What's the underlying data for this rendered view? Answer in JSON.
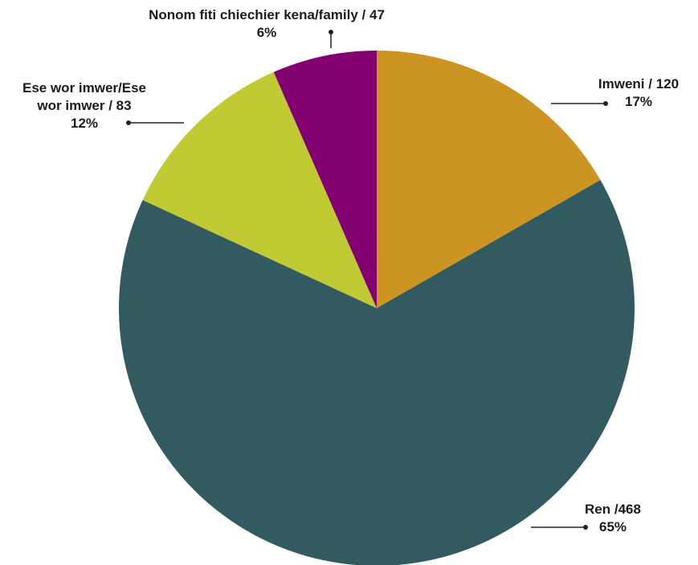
{
  "chart_data": {
    "type": "pie",
    "slices": [
      {
        "name": "Imweni",
        "value": 120,
        "percent_label": "17%",
        "label_line1": "Imweni / 120",
        "label_line2": "",
        "color": "#CC9421"
      },
      {
        "name": "Ren",
        "value": 468,
        "percent_label": "65%",
        "label_line1": "Ren /468",
        "label_line2": "",
        "color": "#315B61"
      },
      {
        "name": "Ese wor imwer/Ese wor imwer",
        "value": 83,
        "percent_label": "12%",
        "label_line1": "Ese wor imwer/Ese",
        "label_line2": "wor imwer / 83",
        "color": "#C0CB33"
      },
      {
        "name": "Nonom fiti chiechier kena/family",
        "value": 47,
        "percent_label": "6%",
        "label_line1": "Nonom fiti chiechier kena/family / 47",
        "label_line2": "",
        "color": "#820070"
      }
    ],
    "start_angle_deg": 0,
    "direction": "clockwise",
    "legend": "none",
    "title": ""
  }
}
